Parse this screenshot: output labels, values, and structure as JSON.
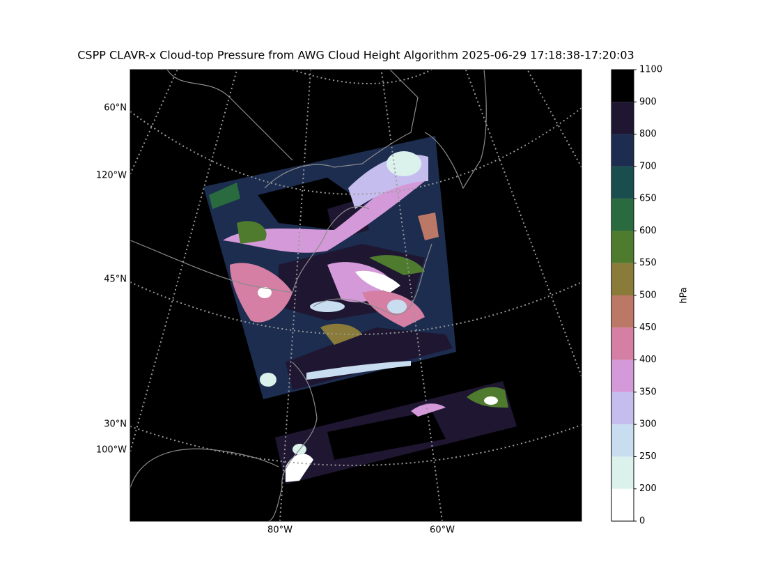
{
  "title": "CSPP CLAVR-x Cloud-top Pressure from AWG Cloud Height Algorithm 2025-06-29 17:18:38-17:20:03",
  "map": {
    "lat_labels": [
      "60°N",
      "45°N",
      "30°N"
    ],
    "lon_labels_left": [
      "120°W",
      "100°W"
    ],
    "lon_labels_bottom": [
      "80°W",
      "60°W"
    ]
  },
  "colorbar": {
    "label": "hPa",
    "boundaries": [
      0,
      200,
      250,
      300,
      350,
      400,
      450,
      500,
      550,
      600,
      650,
      700,
      800,
      900,
      1100
    ],
    "colors": [
      "#ffffff",
      "#daf1ec",
      "#c9ddf1",
      "#c6bdef",
      "#d499d8",
      "#d47fa3",
      "#bb7866",
      "#8a7b3a",
      "#4f7b2e",
      "#296b3e",
      "#1a4d4e",
      "#1c2d4f",
      "#1f1632",
      "#000000"
    ]
  }
}
